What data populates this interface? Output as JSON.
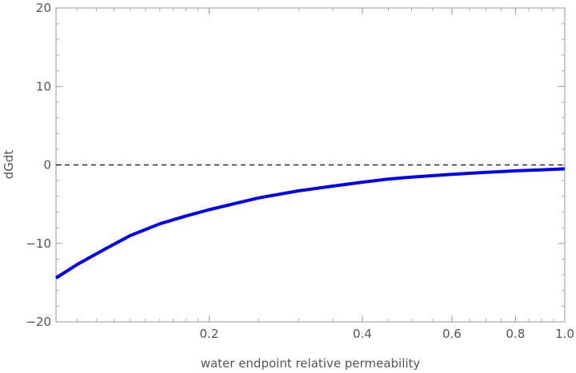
{
  "chart_data": {
    "type": "line",
    "title": "",
    "xlabel": "water endpoint relative permeability",
    "ylabel": "dGdt",
    "x_scale": "log",
    "xlim": [
      0.1,
      1.0
    ],
    "ylim": [
      -20,
      20
    ],
    "x_ticks": [
      {
        "value": 0.2,
        "label": "0.2"
      },
      {
        "value": 0.4,
        "label": "0.4"
      },
      {
        "value": 0.6,
        "label": "0.6"
      },
      {
        "value": 0.8,
        "label": "0.8"
      },
      {
        "value": 1.0,
        "label": "1.0"
      }
    ],
    "y_ticks": [
      {
        "value": -20,
        "label": "−20"
      },
      {
        "value": -10,
        "label": "−10"
      },
      {
        "value": 0,
        "label": "0"
      },
      {
        "value": 10,
        "label": "10"
      },
      {
        "value": 20,
        "label": "20"
      }
    ],
    "reference_line": {
      "y": 0,
      "style": "dashed",
      "color": "#000000"
    },
    "grid": false,
    "series": [
      {
        "color": "#0000ee",
        "points": [
          [
            0.1,
            -14.4
          ],
          [
            0.11,
            -12.7
          ],
          [
            0.125,
            -10.7
          ],
          [
            0.14,
            -9.0
          ],
          [
            0.16,
            -7.5
          ],
          [
            0.18,
            -6.5
          ],
          [
            0.2,
            -5.7
          ],
          [
            0.25,
            -4.2
          ],
          [
            0.3,
            -3.3
          ],
          [
            0.35,
            -2.7
          ],
          [
            0.4,
            -2.2
          ],
          [
            0.45,
            -1.8
          ],
          [
            0.5,
            -1.55
          ],
          [
            0.6,
            -1.2
          ],
          [
            0.7,
            -0.95
          ],
          [
            0.8,
            -0.75
          ],
          [
            0.9,
            -0.62
          ],
          [
            1.0,
            -0.5
          ]
        ]
      }
    ]
  }
}
